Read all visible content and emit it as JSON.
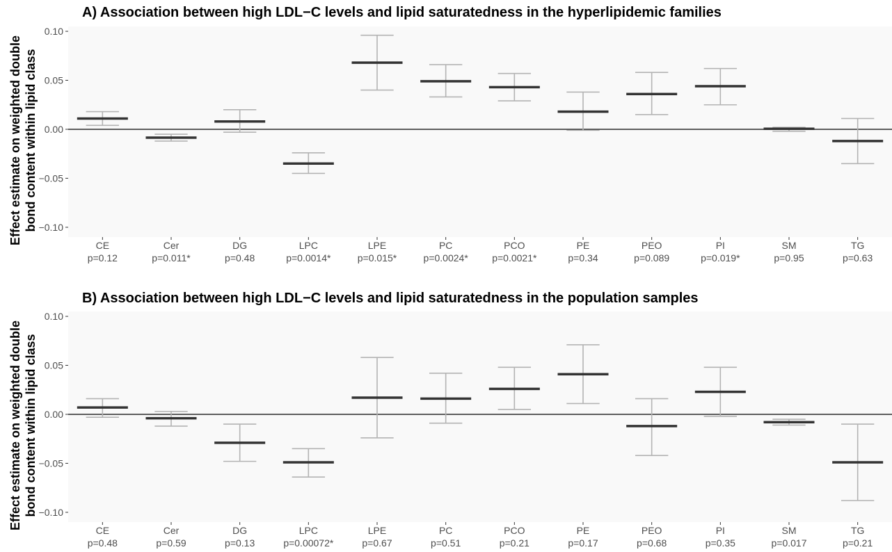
{
  "ylabel": {
    "line1": "Effect estimate on weighted double",
    "line2": "bond content within lipid class"
  },
  "colors": {
    "panel_bg": "#f9f9f9",
    "errorbar": "#b3b3b3",
    "estimate": "#333333",
    "zero_line": "#000000"
  },
  "chart_data": [
    {
      "type": "errorbar",
      "title": "A) Association between high LDL−C levels and lipid saturatedness in the hyperlipidemic families",
      "ylim": [
        -0.11,
        0.105
      ],
      "yticks": [
        -0.1,
        -0.05,
        0.0,
        0.05,
        0.1
      ],
      "ytick_labels": [
        "−0.10",
        "−0.05",
        "0.00",
        "0.05",
        "0.10"
      ],
      "hline": 0,
      "categories": [
        "CE",
        "Cer",
        "DG",
        "LPC",
        "LPE",
        "PC",
        "PCO",
        "PE",
        "PEO",
        "PI",
        "SM",
        "TG"
      ],
      "pvalues": [
        "p=0.12",
        "p=0.011*",
        "p=0.48",
        "p=0.0014*",
        "p=0.015*",
        "p=0.0024*",
        "p=0.0021*",
        "p=0.34",
        "p=0.089",
        "p=0.019*",
        "p=0.95",
        "p=0.63"
      ],
      "estimate": [
        0.011,
        -0.0085,
        0.008,
        -0.035,
        0.068,
        0.049,
        0.043,
        0.018,
        0.036,
        0.044,
        0.0005,
        -0.012
      ],
      "lower": [
        0.004,
        -0.012,
        -0.003,
        -0.045,
        0.04,
        0.033,
        0.029,
        -0.001,
        0.015,
        0.025,
        -0.002,
        -0.035
      ],
      "upper": [
        0.018,
        -0.005,
        0.02,
        -0.024,
        0.096,
        0.066,
        0.057,
        0.038,
        0.058,
        0.062,
        0.002,
        0.011
      ]
    },
    {
      "type": "errorbar",
      "title": "B) Association between high LDL−C levels and lipid saturatedness in the population samples",
      "ylim": [
        -0.11,
        0.105
      ],
      "yticks": [
        -0.1,
        -0.05,
        0.0,
        0.05,
        0.1
      ],
      "ytick_labels": [
        "−0.10",
        "−0.05",
        "0.00",
        "0.05",
        "0.10"
      ],
      "hline": 0,
      "categories": [
        "CE",
        "Cer",
        "DG",
        "LPC",
        "LPE",
        "PC",
        "PCO",
        "PE",
        "PEO",
        "PI",
        "SM",
        "TG"
      ],
      "pvalues": [
        "p=0.48",
        "p=0.59",
        "p=0.13",
        "p=0.00072*",
        "p=0.67",
        "p=0.51",
        "p=0.21",
        "p=0.17",
        "p=0.68",
        "p=0.35",
        "p=0.017",
        "p=0.21"
      ],
      "estimate": [
        0.007,
        -0.004,
        -0.029,
        -0.049,
        0.017,
        0.016,
        0.026,
        0.041,
        -0.012,
        0.023,
        -0.008,
        -0.049
      ],
      "lower": [
        -0.003,
        -0.012,
        -0.048,
        -0.064,
        -0.024,
        -0.009,
        0.005,
        0.011,
        -0.042,
        -0.002,
        -0.011,
        -0.088
      ],
      "upper": [
        0.016,
        0.003,
        -0.01,
        -0.035,
        0.058,
        0.042,
        0.048,
        0.071,
        0.016,
        0.048,
        -0.005,
        -0.01
      ]
    }
  ]
}
